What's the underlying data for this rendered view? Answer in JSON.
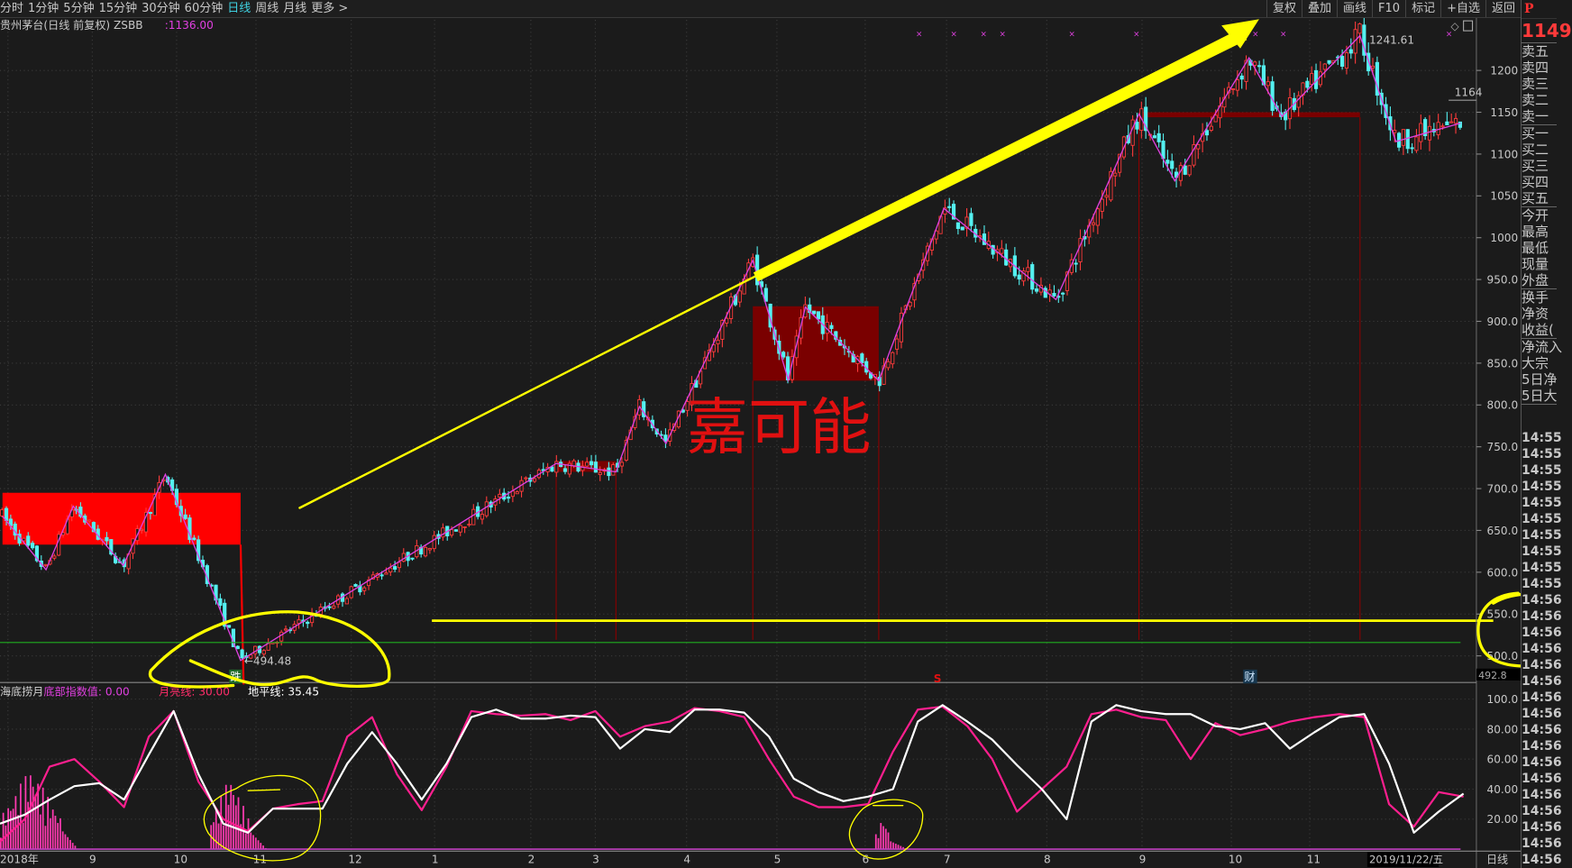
{
  "toolbar": {
    "periods": [
      "分时",
      "1分钟",
      "5分钟",
      "15分钟",
      "30分钟",
      "60分钟",
      "日线",
      "周线",
      "月线",
      "更多 >"
    ],
    "active_period": "日线",
    "buttons": [
      "复权",
      "叠加",
      "画线",
      "F10",
      "标记",
      "+自选",
      "返回"
    ]
  },
  "header": {
    "title": "贵州茅台(日线 前复权) ZSBB",
    "value": ":1136.00"
  },
  "indicator_header": {
    "name": "海底捞月",
    "bottom_index": "底部指数值: 0.00",
    "moon_line": "月亮线: 30.00",
    "horizon_line": "地平线: 35.45"
  },
  "annotations": {
    "big_text": "嘉可能",
    "high_label": "1241.61",
    "low_label": "494.48",
    "last_label": "1164",
    "signal_fall": "跌",
    "signal_s": "S",
    "signal_cai": "财",
    "axis_cursor_value": "492.8",
    "cursor_date": "2019/11/22/五",
    "period_label": "日线"
  },
  "right_panel": {
    "p_label": "P",
    "price": "1149",
    "sell": [
      "卖五",
      "卖四",
      "卖三",
      "卖二",
      "卖一"
    ],
    "buy": [
      "买一",
      "买二",
      "买三",
      "买四",
      "买五"
    ],
    "quote": [
      "今开",
      "最高",
      "最低",
      "现量",
      "外盘"
    ],
    "ratios": [
      "换手",
      "净资",
      "收益("
    ],
    "flows": [
      "净流入",
      "大宗",
      "5日净",
      "5日大"
    ],
    "times": [
      "14:55",
      "14:55",
      "14:55",
      "14:55",
      "14:55",
      "14:55",
      "14:55",
      "14:55",
      "14:55",
      "14:55",
      "14:56",
      "14:56",
      "14:56",
      "14:56",
      "14:56",
      "14:56",
      "14:56",
      "14:56",
      "14:56",
      "14:56",
      "14:56",
      "14:56",
      "14:56",
      "14:56",
      "14:56",
      "14:56",
      "14:56"
    ]
  },
  "colors": {
    "up": "#ff3b3b",
    "down": "#54f0f0",
    "zigzag": "#e040e0",
    "annotation": "#ffff00",
    "box_bright": "#ff0000",
    "box_dark": "#7a0000",
    "support_line": "#ffff00",
    "green_line": "#1fae1f",
    "k_line": "#ffffff",
    "d_line": "#ff1f8f"
  },
  "chart_data": [
    {
      "type": "candlestick",
      "title": "贵州茅台(日线 前复权)",
      "y_ticks": [
        "1200",
        "1150",
        "1100",
        "1050",
        "1000",
        "950.0",
        "900.0",
        "850.0",
        "800.0",
        "750.0",
        "700.0",
        "650.0",
        "600.0",
        "550.0",
        "500.0"
      ],
      "ylim": [
        492.8,
        1250
      ],
      "x_ticks": [
        {
          "label": "2018年",
          "date": "2018-08-01"
        },
        {
          "label": "9",
          "date": "2018-09-01"
        },
        {
          "label": "10",
          "date": "2018-10-01"
        },
        {
          "label": "11",
          "date": "2018-11-01"
        },
        {
          "label": "12",
          "date": "2018-12-01"
        },
        {
          "label": "1",
          "date": "2019-01-01"
        },
        {
          "label": "2",
          "date": "2019-02-01"
        },
        {
          "label": "3",
          "date": "2019-03-01"
        },
        {
          "label": "4",
          "date": "2019-04-01"
        },
        {
          "label": "5",
          "date": "2019-05-01"
        },
        {
          "label": "6",
          "date": "2019-06-01"
        },
        {
          "label": "7",
          "date": "2019-07-01"
        },
        {
          "label": "8",
          "date": "2019-08-01"
        },
        {
          "label": "9",
          "date": "2019-09-01"
        },
        {
          "label": "10",
          "date": "2019-10-01"
        },
        {
          "label": "11",
          "date": "2019-11-01"
        }
      ],
      "end_date": "2019-11-22",
      "zigzag_pivots": [
        [
          "2018-07-30",
          667
        ],
        [
          "2018-08-15",
          603
        ],
        [
          "2018-08-25",
          679
        ],
        [
          "2018-09-12",
          608
        ],
        [
          "2018-09-27",
          717
        ],
        [
          "2018-10-26",
          494.48
        ],
        [
          "2019-02-12",
          730
        ],
        [
          "2019-03-08",
          720
        ],
        [
          "2019-03-16",
          798
        ],
        [
          "2019-03-25",
          754
        ],
        [
          "2019-04-23",
          973
        ],
        [
          "2019-05-05",
          830
        ],
        [
          "2019-05-11",
          917
        ],
        [
          "2019-06-06",
          829
        ],
        [
          "2019-06-30",
          1035
        ],
        [
          "2019-08-04",
          926
        ],
        [
          "2019-08-31",
          1148
        ],
        [
          "2019-09-12",
          1068
        ],
        [
          "2019-10-08",
          1215
        ],
        [
          "2019-10-21",
          1145
        ],
        [
          "2019-11-08",
          1241.61
        ],
        [
          "2019-11-13",
          1115
        ],
        [
          "2019-11-22",
          1137
        ]
      ],
      "boxes": [
        {
          "from": "2018-07-30",
          "to": "2018-10-26",
          "low": 633,
          "high": 695,
          "style": "bright"
        },
        {
          "from": "2019-02-12",
          "to": "2019-03-08",
          "low": 720,
          "high": 733,
          "style": "dark"
        },
        {
          "from": "2019-04-23",
          "to": "2019-06-06",
          "low": 829,
          "high": 918,
          "style": "dark"
        },
        {
          "from": "2019-08-31",
          "to": "2019-11-08",
          "low": 1144,
          "high": 1150,
          "style": "dark"
        }
      ],
      "support_line": {
        "price": 542,
        "from": "2018-12-31"
      },
      "green_line": {
        "price": 516
      },
      "trend_arrow": {
        "from": [
          "2018-11-25",
          700
        ],
        "to": [
          "2019-10-08",
          1235
        ]
      }
    },
    {
      "type": "line",
      "title": "海底捞月",
      "y_ticks": [
        "100.0",
        "80.00",
        "60.00",
        "40.00",
        "20.00"
      ],
      "ylim": [
        0,
        100
      ],
      "series": [
        {
          "color": "#ffffff",
          "values": [
            17,
            23,
            33,
            42,
            44,
            33,
            63,
            92,
            50,
            17,
            11,
            27,
            27,
            27,
            57,
            78,
            57,
            33,
            57,
            88,
            93,
            87,
            87,
            89,
            88,
            67,
            80,
            78,
            93,
            93,
            91,
            75,
            47,
            38,
            32,
            35,
            40,
            85,
            96,
            85,
            73,
            56,
            40,
            20,
            85,
            96,
            92,
            90,
            90,
            82,
            80,
            84,
            67,
            78,
            88,
            90,
            57,
            11,
            25,
            37
          ]
        },
        {
          "color": "#ff1f8f",
          "values": [
            5,
            20,
            55,
            60,
            45,
            28,
            75,
            92,
            45,
            20,
            12,
            27,
            30,
            32,
            75,
            88,
            50,
            26,
            55,
            92,
            90,
            89,
            90,
            86,
            92,
            75,
            82,
            85,
            94,
            92,
            88,
            60,
            35,
            28,
            28,
            30,
            65,
            93,
            95,
            82,
            60,
            25,
            40,
            55,
            90,
            93,
            88,
            86,
            60,
            84,
            76,
            80,
            85,
            88,
            90,
            88,
            30,
            15,
            38,
            35
          ]
        }
      ]
    }
  ]
}
